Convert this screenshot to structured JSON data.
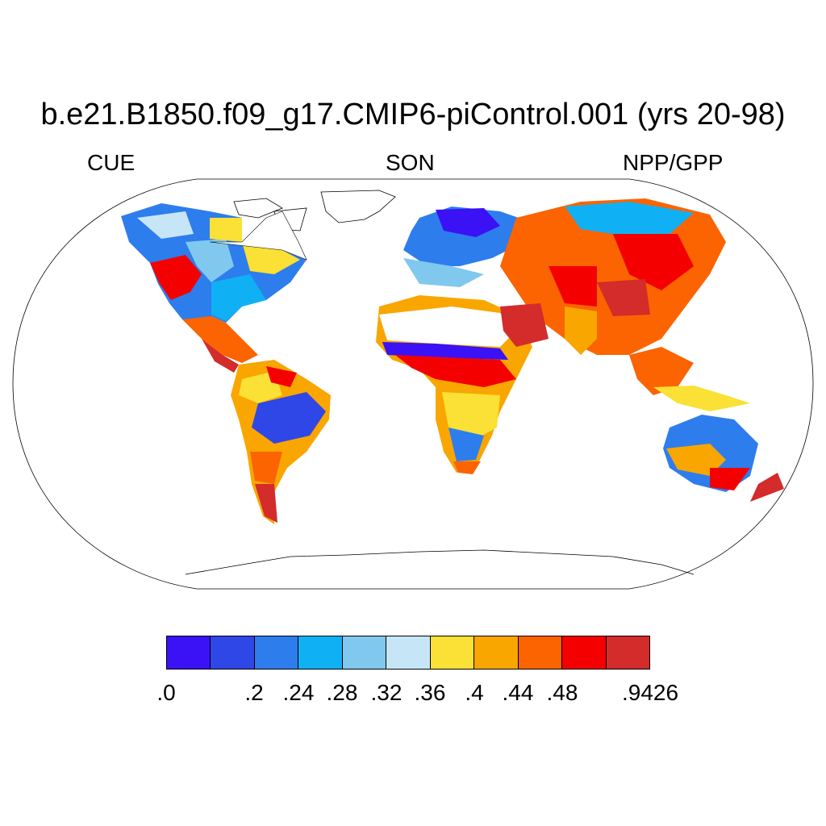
{
  "title": "b.e21.B1850.f09_g17.CMIP6-piControl.001 (yrs 20-98)",
  "subtitle_left": "CUE",
  "subtitle_center": "SON",
  "subtitle_right": "NPP/GPP",
  "colorbar": {
    "colors": [
      "#3a12f5",
      "#2f47e6",
      "#2e7ded",
      "#10b0f5",
      "#80c8ee",
      "#c6e6f8",
      "#fbe035",
      "#f9a600",
      "#fb6400",
      "#f50000",
      "#d42b2b"
    ],
    "tick_labels": [
      ".0",
      ".2",
      ".24",
      ".28",
      ".32",
      ".36",
      ".4",
      ".44",
      ".48",
      ".9426"
    ]
  },
  "colors": {
    "land_no_data": "#ffffff",
    "coastline": "#000000",
    "map_border": "#000000"
  }
}
